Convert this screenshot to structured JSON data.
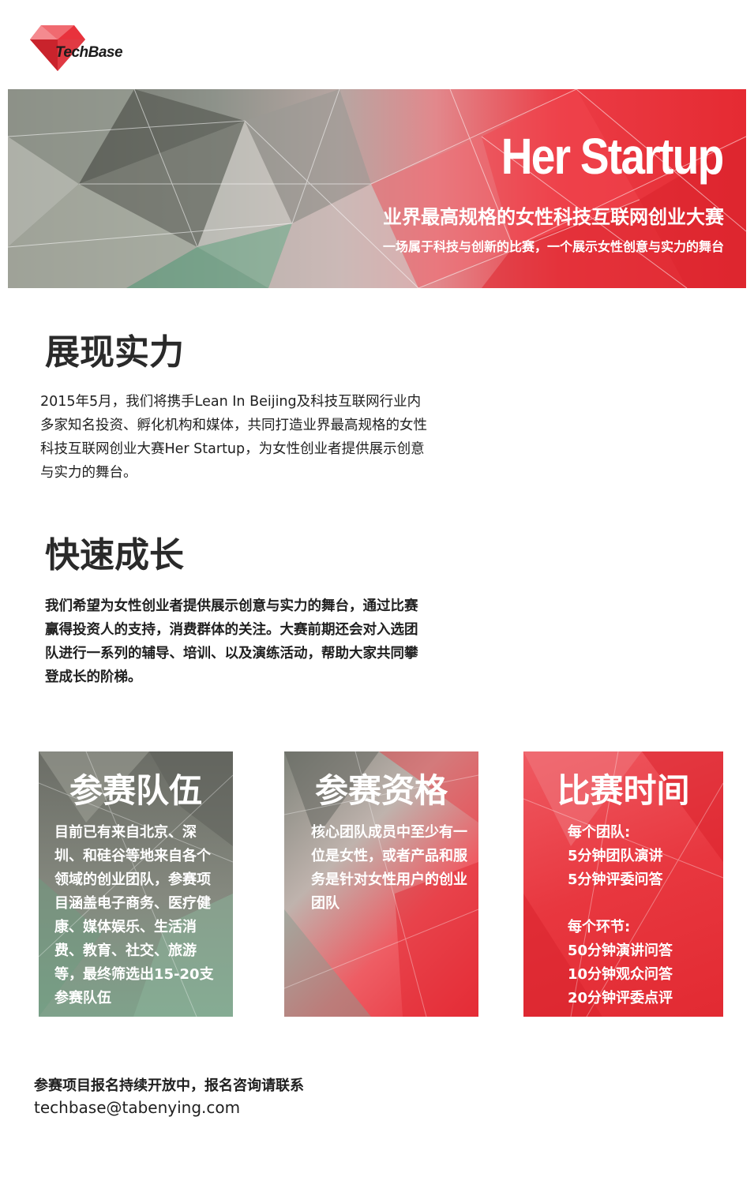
{
  "logo": {
    "text": "TechBase"
  },
  "banner": {
    "title": "Her Startup",
    "subtitle": "业界最高规格的女性科技互联网创业大赛",
    "tagline": "一场属于科技与创新的比赛，一个展示女性创意与实力的舞台"
  },
  "section1": {
    "title": "展现实力",
    "body": "2015年5月，我们将携手Lean In Beijing及科技互联网行业内多家知名投资、孵化机构和媒体，共同打造业界最高规格的女性科技互联网创业大赛Her Startup，为女性创业者提供展示创意与实力的舞台。"
  },
  "section2": {
    "title": "快速成长",
    "body": "我们希望为女性创业者提供展示创意与实力的舞台，通过比赛赢得投资人的支持，消费群体的关注。大赛前期还会对入选团队进行一系列的辅导、培训、以及演练活动，帮助大家共同攀登成长的阶梯。"
  },
  "cards": [
    {
      "title": "参赛队伍",
      "body": "目前已有来自北京、深圳、和硅谷等地来自各个领域的创业团队，参赛项目涵盖电子商务、医疗健康、媒体娱乐、生活消费、教育、社交、旅游等，最终筛选出15-20支参赛队伍"
    },
    {
      "title": "参赛资格",
      "body": "核心团队成员中至少有一位是女性，或者产品和服务是针对女性用户的创业团队"
    },
    {
      "title": "比赛时间",
      "lines": [
        "每个团队:",
        "5分钟团队演讲",
        "5分钟评委问答",
        "",
        "每个环节:",
        "50分钟演讲问答",
        "10分钟观众问答",
        "20分钟评委点评"
      ]
    }
  ],
  "contact": {
    "line1": "参赛项目报名持续开放中，报名咨询请联系",
    "email": "techbase@tabenying.com"
  },
  "colors": {
    "brand_red": "#e52a32",
    "gray": "#7b7d75",
    "green": "#8aa892"
  }
}
